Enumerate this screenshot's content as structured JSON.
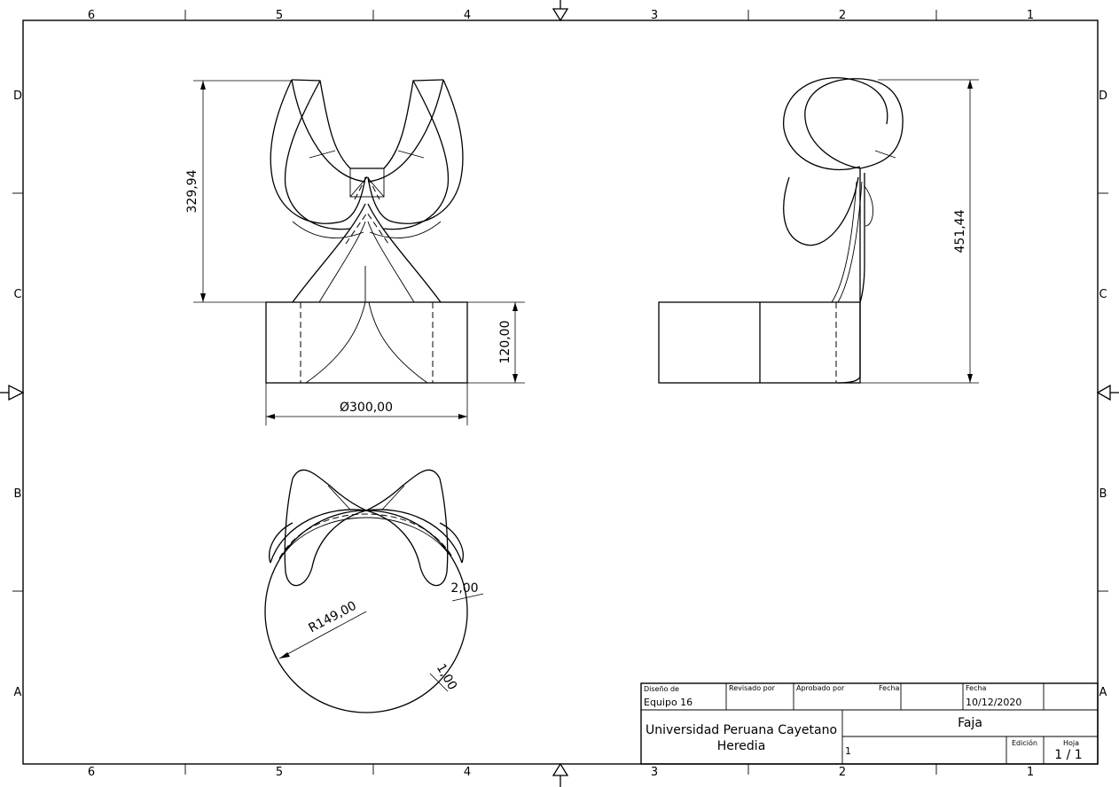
{
  "drawing": {
    "zones_columns": [
      "6",
      "5",
      "4",
      "3",
      "2",
      "1"
    ],
    "zones_rows": [
      "D",
      "C",
      "B",
      "A"
    ],
    "dimensions": {
      "front_height": "329,94",
      "base_height": "120,00",
      "base_diameter": "Ø300,00",
      "side_height": "451,44",
      "radius": "R149,00",
      "thickness_a": "2,00",
      "thickness_b": "1,00"
    }
  },
  "title_block": {
    "designed_by_label": "Diseño de",
    "designed_by_value": "Equipo 16",
    "reviewed_by_label": "Revisado por",
    "approved_by_label": "Aprobado por",
    "date_label_1": "Fecha",
    "date_label_2": "Fecha",
    "date_value": "10/12/2020",
    "organization_line1": "Universidad Peruana Cayetano",
    "organization_line2": "Heredia",
    "part_title": "Faja",
    "item_number": "1",
    "edition_label": "Edición",
    "sheet_label": "Hoja",
    "sheet_value": "1 / 1"
  }
}
